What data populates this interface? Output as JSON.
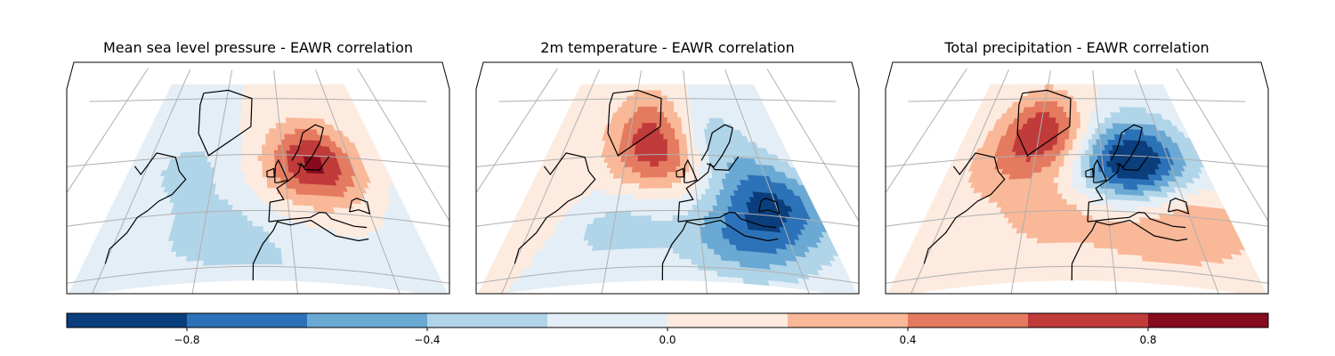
{
  "chart_data": {
    "type": "contour_map",
    "panels": [
      {
        "title": "Mean sea level pressure - EAWR correlation",
        "pattern": [
          {
            "lon": 18,
            "lat": 57,
            "value": 0.85
          },
          {
            "lon": -35,
            "lat": 32,
            "value": -0.3
          },
          {
            "lon": -55,
            "lat": 55,
            "value": -0.25
          },
          {
            "lon": 0,
            "lat": 20,
            "value": -0.15
          },
          {
            "lon": 55,
            "lat": 48,
            "value": -0.1
          }
        ]
      },
      {
        "title": "2m temperature - EAWR correlation",
        "pattern": [
          {
            "lon": -18,
            "lat": 60,
            "value": 0.65
          },
          {
            "lon": -30,
            "lat": 72,
            "value": 0.35
          },
          {
            "lon": -80,
            "lat": 40,
            "value": 0.15
          },
          {
            "lon": 40,
            "lat": 45,
            "value": -0.75
          },
          {
            "lon": 20,
            "lat": 30,
            "value": -0.55
          },
          {
            "lon": -40,
            "lat": 35,
            "value": -0.3
          },
          {
            "lon": 10,
            "lat": 65,
            "value": -0.4
          }
        ]
      },
      {
        "title": "Total precipitation - EAWR correlation",
        "pattern": [
          {
            "lon": -38,
            "lat": 68,
            "value": 0.75
          },
          {
            "lon": 12,
            "lat": 56,
            "value": -0.85
          },
          {
            "lon": 35,
            "lat": 62,
            "value": -0.45
          },
          {
            "lon": -25,
            "lat": 38,
            "value": 0.3
          },
          {
            "lon": 20,
            "lat": 32,
            "value": 0.25
          },
          {
            "lon": 45,
            "lat": 40,
            "value": 0.35
          },
          {
            "lon": -60,
            "lat": 55,
            "value": 0.2
          }
        ]
      }
    ],
    "colorbar": {
      "range": [
        -1.0,
        1.0
      ],
      "levels": [
        -1.0,
        -0.8,
        -0.6,
        -0.4,
        -0.2,
        0.0,
        0.2,
        0.4,
        0.6,
        0.8,
        1.0
      ],
      "colors": [
        "#0b3e7c",
        "#2c72b8",
        "#6aa9d4",
        "#b0d4e8",
        "#e4eef6",
        "#fdebe0",
        "#f9b898",
        "#e47a5f",
        "#c03b3a",
        "#870b1e"
      ],
      "ticks": [
        -0.8,
        -0.4,
        0.0,
        0.4,
        0.8
      ],
      "tick_labels": [
        "−0.8",
        "−0.4",
        "0.0",
        "0.4",
        "0.8"
      ]
    }
  }
}
